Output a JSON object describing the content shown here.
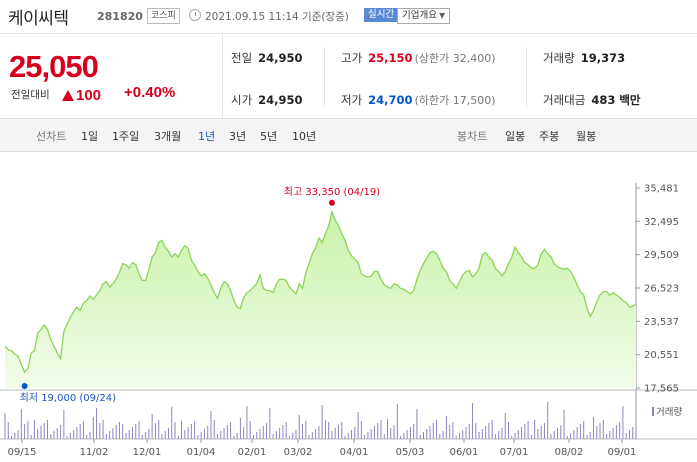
{
  "header": {
    "stock_name": "케이씨텍",
    "stock_code": "281820",
    "market_badge": "코스피",
    "datetime": "2021.09.15 11:14 기준(장중)",
    "realtime_badge": "실시간",
    "company_info_button": "기업개요"
  },
  "price": {
    "current": "25,050",
    "change_label": "전일대비",
    "change_value": "100",
    "change_pct": "+0.40%"
  },
  "stats": {
    "prev_close_label": "전일",
    "prev_close": "24,950",
    "high_label": "고가",
    "high": "25,150",
    "upper_limit": "(상한가 32,400)",
    "volume_label": "거래량",
    "volume": "19,373",
    "open_label": "시가",
    "open": "24,950",
    "low_label": "저가",
    "low": "24,700",
    "lower_limit": "(하한가 17,500)",
    "trade_value_label": "거래대금",
    "trade_value": "483 백만"
  },
  "toolbar": {
    "line_chart_label": "선차트",
    "periods": [
      "1일",
      "1주일",
      "3개월",
      "1년",
      "3년",
      "5년",
      "10년"
    ],
    "active_period": "1년",
    "candle_chart_label": "봉차트",
    "candle_periods": [
      "일봉",
      "주봉",
      "월봉"
    ]
  },
  "colors": {
    "up": "#d7001c",
    "down": "#0058c9",
    "line": "#8cd45a",
    "area_top": "#c8f2a8",
    "area_bottom": "#f3fceb"
  },
  "chart_data": {
    "type": "area",
    "title": "",
    "x_tick_labels": [
      "09/15",
      "11/02",
      "12/01",
      "01/04",
      "02/01",
      "03/02",
      "04/01",
      "05/03",
      "06/01",
      "07/01",
      "08/02",
      "09/01"
    ],
    "y_tick_labels": [
      "35,481",
      "32,495",
      "29,509",
      "26,523",
      "23,537",
      "20,551",
      "17,565"
    ],
    "ylim": [
      17565,
      35481
    ],
    "series": [
      {
        "values": [
          21300,
          21000,
          20900,
          20600,
          20400,
          19700,
          19000,
          19300,
          20700,
          20900,
          22500,
          22800,
          23200,
          22800,
          21900,
          21300,
          20700,
          20200,
          22600,
          23300,
          23900,
          24400,
          24800,
          24500,
          25200,
          25400,
          25800,
          25500,
          25900,
          26300,
          26900,
          27100,
          26600,
          26900,
          27300,
          27900,
          28700,
          28600,
          28300,
          28800,
          28600,
          27800,
          27200,
          27200,
          28200,
          29300,
          29700,
          30600,
          30800,
          30200,
          29800,
          29300,
          29600,
          29300,
          29900,
          30300,
          30100,
          29000,
          28600,
          28000,
          27600,
          27800,
          27400,
          26800,
          26100,
          25600,
          26500,
          27100,
          26900,
          26300,
          25400,
          24800,
          24700,
          25700,
          26100,
          26300,
          26600,
          26900,
          27700,
          26500,
          26300,
          26300,
          26100,
          26900,
          27300,
          27300,
          27200,
          26600,
          26300,
          26000,
          26900,
          26500,
          27900,
          28700,
          29600,
          30100,
          31000,
          30600,
          31400,
          32100,
          33350,
          32600,
          32100,
          31400,
          30800,
          29900,
          29400,
          29100,
          28800,
          27800,
          27600,
          27500,
          27600,
          28000,
          28000,
          27300,
          26800,
          26600,
          26500,
          26900,
          26800,
          26500,
          26400,
          26200,
          26000,
          26300,
          27300,
          28100,
          28700,
          29200,
          29700,
          29800,
          29600,
          29000,
          28300,
          28000,
          27200,
          26900,
          26500,
          27100,
          27700,
          28000,
          28100,
          27500,
          27800,
          28300,
          29500,
          29700,
          29300,
          29000,
          28300,
          28000,
          27600,
          28000,
          28700,
          29300,
          30200,
          29700,
          29300,
          28800,
          28600,
          28300,
          28300,
          28600,
          29600,
          30000,
          29600,
          29300,
          28700,
          28400,
          28300,
          28200,
          28300,
          28000,
          27500,
          26800,
          26200,
          25900,
          24700,
          24000,
          24500,
          25300,
          25900,
          26200,
          26200,
          25900,
          26100,
          25900,
          25700,
          25400,
          25200,
          24800,
          24900,
          25050
        ]
      }
    ],
    "high_annotation": "최고 33,350 (04/19)",
    "low_annotation": "최저 19,000 (09/24)",
    "volume_label": "거래량",
    "grid": false
  }
}
